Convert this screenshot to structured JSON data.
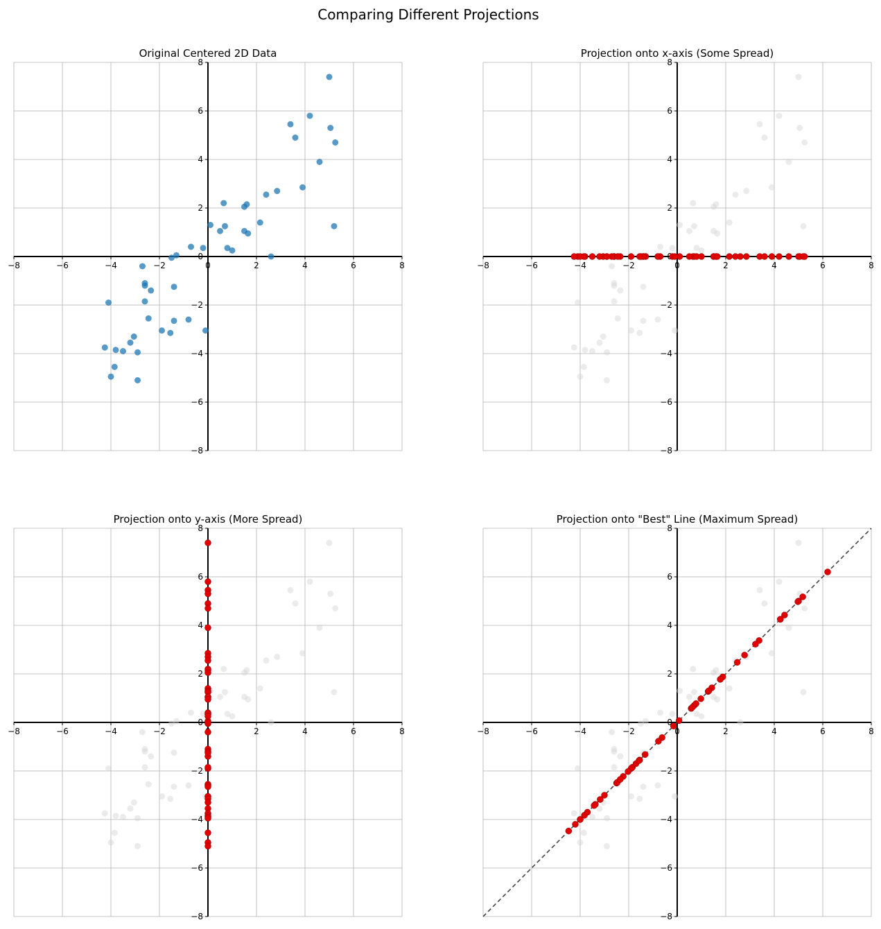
{
  "figure": {
    "suptitle": "Comparing Different Projections"
  },
  "colors": {
    "original": "#1f77b4",
    "projected": "#e00000",
    "background_points": "#d3d3d3",
    "grid": "#b0b0b0",
    "axis": "#000000",
    "best_line": "#444444"
  },
  "chart_data": [
    {
      "type": "scatter",
      "title": "Original Centered 2D Data",
      "xlim": [
        -8,
        8
      ],
      "ylim": [
        -8,
        8
      ],
      "xticks": [
        -8,
        -6,
        -4,
        -2,
        0,
        2,
        4,
        6,
        8
      ],
      "yticks": [
        -8,
        -6,
        -4,
        -2,
        0,
        2,
        4,
        6,
        8
      ],
      "grid": true,
      "projection": "none",
      "points": [
        [
          5.0,
          7.4
        ],
        [
          4.2,
          5.8
        ],
        [
          3.4,
          5.45
        ],
        [
          5.05,
          5.3
        ],
        [
          3.6,
          4.9
        ],
        [
          5.25,
          4.7
        ],
        [
          4.6,
          3.9
        ],
        [
          3.9,
          2.85
        ],
        [
          2.85,
          2.7
        ],
        [
          2.4,
          2.55
        ],
        [
          0.65,
          2.2
        ],
        [
          1.6,
          2.15
        ],
        [
          1.5,
          2.05
        ],
        [
          2.15,
          1.4
        ],
        [
          0.1,
          1.3
        ],
        [
          0.7,
          1.25
        ],
        [
          5.2,
          1.25
        ],
        [
          0.5,
          1.05
        ],
        [
          1.5,
          1.05
        ],
        [
          1.65,
          0.95
        ],
        [
          -0.7,
          0.4
        ],
        [
          -0.2,
          0.35
        ],
        [
          0.8,
          0.35
        ],
        [
          1.0,
          0.25
        ],
        [
          -1.3,
          0.05
        ],
        [
          -1.5,
          -0.05
        ],
        [
          2.6,
          0.0
        ],
        [
          -2.7,
          -0.4
        ],
        [
          -2.6,
          -1.1
        ],
        [
          -2.6,
          -1.2
        ],
        [
          -2.35,
          -1.4
        ],
        [
          -1.4,
          -1.25
        ],
        [
          -4.1,
          -1.9
        ],
        [
          -2.6,
          -1.85
        ],
        [
          -2.45,
          -2.55
        ],
        [
          -0.8,
          -2.6
        ],
        [
          -1.4,
          -2.65
        ],
        [
          -0.1,
          -3.05
        ],
        [
          -1.9,
          -3.05
        ],
        [
          -1.55,
          -3.15
        ],
        [
          -3.05,
          -3.3
        ],
        [
          -3.2,
          -3.55
        ],
        [
          -4.25,
          -3.75
        ],
        [
          -3.8,
          -3.85
        ],
        [
          -3.5,
          -3.9
        ],
        [
          -2.9,
          -3.95
        ],
        [
          -3.85,
          -4.55
        ],
        [
          -4.0,
          -4.95
        ],
        [
          -2.9,
          -5.1
        ]
      ]
    },
    {
      "type": "scatter",
      "title": "Projection onto x-axis (Some Spread)",
      "xlim": [
        -8,
        8
      ],
      "ylim": [
        -8,
        8
      ],
      "xticks": [
        -8,
        -6,
        -4,
        -2,
        0,
        2,
        4,
        6,
        8
      ],
      "yticks": [
        -8,
        -6,
        -4,
        -2,
        0,
        2,
        4,
        6,
        8
      ],
      "grid": true,
      "projection": "x-axis"
    },
    {
      "type": "scatter",
      "title": "Projection onto y-axis (More Spread)",
      "xlim": [
        -8,
        8
      ],
      "ylim": [
        -8,
        8
      ],
      "xticks": [
        -8,
        -6,
        -4,
        -2,
        0,
        2,
        4,
        6,
        8
      ],
      "yticks": [
        -8,
        -6,
        -4,
        -2,
        0,
        2,
        4,
        6,
        8
      ],
      "grid": true,
      "projection": "y-axis"
    },
    {
      "type": "scatter",
      "title": "Projection onto \"Best\" Line (Maximum Spread)",
      "xlim": [
        -8,
        8
      ],
      "ylim": [
        -8,
        8
      ],
      "xticks": [
        -8,
        -6,
        -4,
        -2,
        0,
        2,
        4,
        6,
        8
      ],
      "yticks": [
        -8,
        -6,
        -4,
        -2,
        0,
        2,
        4,
        6,
        8
      ],
      "grid": true,
      "projection": "best-line",
      "best_line": {
        "slope": 1.0,
        "style": "dashed"
      }
    }
  ]
}
